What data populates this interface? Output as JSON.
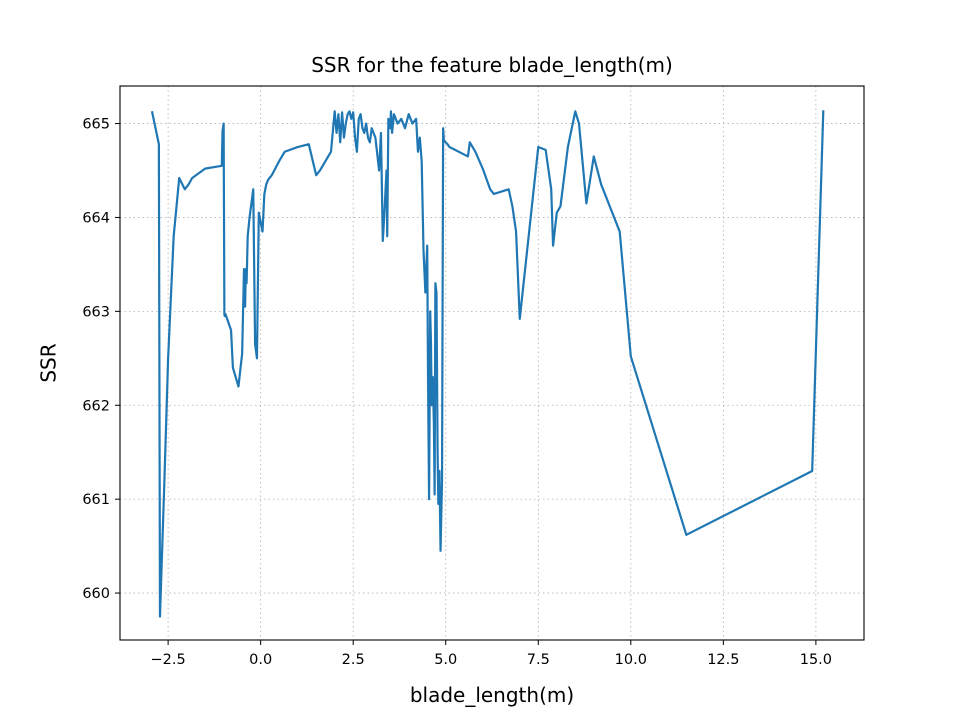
{
  "chart_data": {
    "type": "line",
    "title": "SSR for the feature blade_length(m)",
    "xlabel": "blade_length(m)",
    "ylabel": "SSR",
    "xlim": [
      -3.8,
      16.3
    ],
    "ylim": [
      659.5,
      665.4
    ],
    "x_ticks": [
      -2.5,
      0.0,
      2.5,
      5.0,
      7.5,
      10.0,
      12.5,
      15.0
    ],
    "x_tick_labels": [
      "−2.5",
      "0.0",
      "2.5",
      "5.0",
      "7.5",
      "10.0",
      "12.5",
      "15.0"
    ],
    "y_ticks": [
      660,
      661,
      662,
      663,
      664,
      665
    ],
    "y_tick_labels": [
      "660",
      "661",
      "662",
      "663",
      "664",
      "665"
    ],
    "grid": true,
    "series": [
      {
        "color": "#1f77b4",
        "x": [
          -2.93,
          -2.75,
          -2.72,
          -2.6,
          -2.5,
          -2.35,
          -2.2,
          -2.05,
          -1.95,
          -1.85,
          -1.5,
          -1.05,
          -1.03,
          -1.0,
          -0.98,
          -0.97,
          -0.95,
          -0.8,
          -0.75,
          -0.6,
          -0.5,
          -0.45,
          -0.42,
          -0.4,
          -0.38,
          -0.35,
          -0.3,
          -0.2,
          -0.15,
          -0.1,
          -0.05,
          0.05,
          0.1,
          0.15,
          0.2,
          0.3,
          0.5,
          0.65,
          1.0,
          1.3,
          1.5,
          1.6,
          1.9,
          2.0,
          2.05,
          2.1,
          2.15,
          2.2,
          2.25,
          2.3,
          2.35,
          2.4,
          2.45,
          2.5,
          2.55,
          2.6,
          2.65,
          2.7,
          2.75,
          2.8,
          2.85,
          2.9,
          2.95,
          3.0,
          3.1,
          3.2,
          3.25,
          3.3,
          3.35,
          3.4,
          3.42,
          3.45,
          3.5,
          3.52,
          3.55,
          3.6,
          3.7,
          3.8,
          3.9,
          4.0,
          4.1,
          4.2,
          4.25,
          4.3,
          4.35,
          4.4,
          4.45,
          4.5,
          4.52,
          4.55,
          4.58,
          4.6,
          4.62,
          4.65,
          4.68,
          4.7,
          4.72,
          4.75,
          4.78,
          4.8,
          4.83,
          4.86,
          4.9,
          4.93,
          4.95,
          5.0,
          5.05,
          5.1,
          5.6,
          5.65,
          5.8,
          6.0,
          6.2,
          6.3,
          6.7,
          6.8,
          6.9,
          7.0,
          7.5,
          7.7,
          7.85,
          7.9,
          8.0,
          8.1,
          8.3,
          8.5,
          8.6,
          8.8,
          9.0,
          9.2,
          9.5,
          9.7,
          10.0,
          11.5,
          14.9,
          15.2
        ],
        "y": [
          665.12,
          664.78,
          659.75,
          661.2,
          662.5,
          663.8,
          664.42,
          664.3,
          664.35,
          664.42,
          664.52,
          664.55,
          664.92,
          665.0,
          662.97,
          662.95,
          662.97,
          662.8,
          662.4,
          662.2,
          662.55,
          663.45,
          663.05,
          663.45,
          663.3,
          663.8,
          664.0,
          664.3,
          662.65,
          662.5,
          664.05,
          663.85,
          664.25,
          664.35,
          664.4,
          664.45,
          664.6,
          664.7,
          664.75,
          664.78,
          664.45,
          664.5,
          664.7,
          665.13,
          664.9,
          665.1,
          664.8,
          665.12,
          664.85,
          665.0,
          665.1,
          665.13,
          665.05,
          665.12,
          664.85,
          664.7,
          665.05,
          665.1,
          664.95,
          664.9,
          665.0,
          664.85,
          664.8,
          664.95,
          664.85,
          664.5,
          664.9,
          663.75,
          664.1,
          664.5,
          663.8,
          665.05,
          664.95,
          665.13,
          664.9,
          665.1,
          665.0,
          665.05,
          664.95,
          665.1,
          665.0,
          665.05,
          664.7,
          664.85,
          664.6,
          663.65,
          663.2,
          663.7,
          662.4,
          661.0,
          663.0,
          662.7,
          662.0,
          662.3,
          661.8,
          661.05,
          663.3,
          663.2,
          661.5,
          660.95,
          661.3,
          660.45,
          661.2,
          664.95,
          664.82,
          664.8,
          664.78,
          664.75,
          664.65,
          664.8,
          664.7,
          664.52,
          664.3,
          664.25,
          664.3,
          664.12,
          663.85,
          662.92,
          664.75,
          664.72,
          664.3,
          663.7,
          664.05,
          664.12,
          664.75,
          665.13,
          665.0,
          664.15,
          664.65,
          664.35,
          664.05,
          663.85,
          662.52,
          660.62,
          661.3,
          665.13
        ]
      }
    ]
  }
}
